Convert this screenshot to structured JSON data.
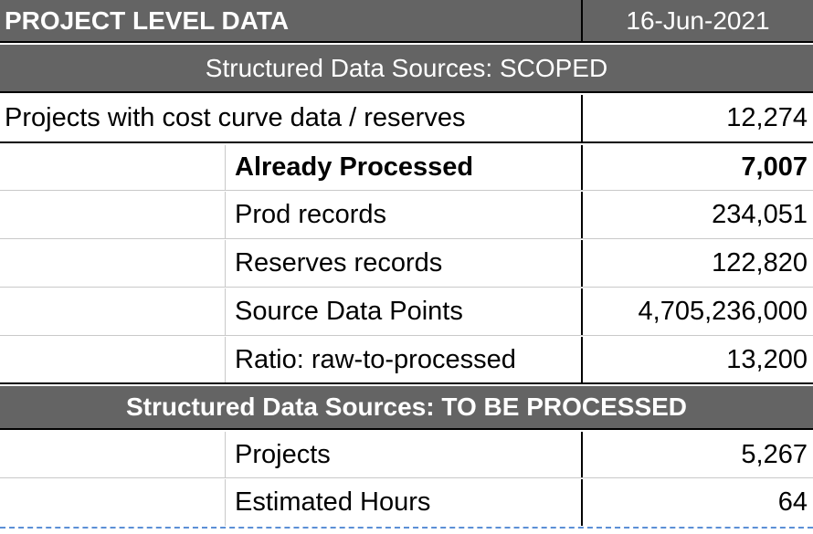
{
  "header": {
    "title": "PROJECT LEVEL DATA",
    "date": "16-Jun-2021"
  },
  "scoped": {
    "section_title": "Structured Data Sources: SCOPED",
    "summary_label": "Projects with cost curve data / reserves",
    "summary_value": "12,274",
    "rows": [
      {
        "label": "Already Processed",
        "value": "7,007"
      },
      {
        "label": "Prod records",
        "value": "234,051"
      },
      {
        "label": "Reserves records",
        "value": "122,820"
      },
      {
        "label": "Source Data Points",
        "value": "4,705,236,000"
      },
      {
        "label": "Ratio: raw-to-processed",
        "value": "13,200"
      }
    ]
  },
  "to_be_processed": {
    "section_title": "Structured Data Sources: TO BE PROCESSED",
    "rows": [
      {
        "label": "Projects",
        "value": "5,267"
      },
      {
        "label": "Estimated Hours",
        "value": "64"
      }
    ]
  }
}
